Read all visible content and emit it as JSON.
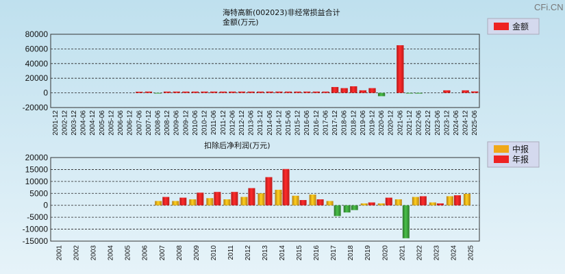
{
  "watermark": "CFi.CN",
  "colors": {
    "red": "#ee2222",
    "orange": "#f0a818",
    "green": "#3a9a3a"
  },
  "chart_data": [
    {
      "type": "bar",
      "title": "海特高新(002023)非经常损益合计",
      "subtitle": "金额(万元)",
      "legend": [
        {
          "name": "金额",
          "color": "#ee2222"
        }
      ],
      "legend_position": "right",
      "ylim": [
        -20000,
        80000
      ],
      "yticks": [
        80000,
        60000,
        40000,
        20000,
        0,
        -20000
      ],
      "grid": true,
      "categories": [
        "2001-12",
        "2002-12",
        "2003-12",
        "2004-06",
        "2004-12",
        "2005-06",
        "2005-12",
        "2006-06",
        "2006-12",
        "2007-06",
        "2007-12",
        "2008-06",
        "2008-12",
        "2009-06",
        "2009-12",
        "2010-06",
        "2010-12",
        "2011-06",
        "2011-12",
        "2012-06",
        "2012-12",
        "2013-06",
        "2013-12",
        "2014-06",
        "2014-12",
        "2015-06",
        "2015-12",
        "2016-06",
        "2016-12",
        "2017-06",
        "2017-12",
        "2018-06",
        "2018-12",
        "2019-06",
        "2019-12",
        "2020-06",
        "2020-12",
        "2021-06",
        "2021-12",
        "2022-06",
        "2022-12",
        "2023-06",
        "2023-12",
        "2024-06",
        "2024-12",
        "2025-06"
      ],
      "values": [
        0,
        0,
        0,
        0,
        0,
        0,
        0,
        0,
        0,
        1600,
        1800,
        -500,
        1800,
        1800,
        1800,
        1800,
        1800,
        1800,
        1800,
        1800,
        1800,
        1800,
        1800,
        1800,
        1800,
        1800,
        1800,
        1800,
        1800,
        1800,
        8000,
        6500,
        9000,
        3500,
        6500,
        -4500,
        0,
        65000,
        -500,
        -1000,
        0,
        0,
        3500,
        0,
        3500,
        2000
      ]
    },
    {
      "type": "bar",
      "title": "扣除后净利润(万元)",
      "legend": [
        {
          "name": "中报",
          "color": "#f0a818"
        },
        {
          "name": "年报",
          "color": "#ee2222"
        }
      ],
      "legend_position": "right",
      "ylim": [
        -15000,
        20000
      ],
      "yticks": [
        20000,
        15000,
        10000,
        5000,
        0,
        -5000,
        -10000,
        -15000
      ],
      "grid": true,
      "categories": [
        "2001",
        "2002",
        "2003",
        "2004",
        "2005",
        "2006",
        "2007",
        "2008",
        "2009",
        "2010",
        "2011",
        "2012",
        "2013",
        "2014",
        "2015",
        "2016",
        "2017",
        "2018",
        "2019",
        "2020",
        "2021",
        "2022",
        "2023",
        "2024",
        "2025"
      ],
      "series": [
        {
          "name": "中报",
          "values": [
            0,
            0,
            0,
            0,
            0,
            0,
            1800,
            1800,
            2500,
            3000,
            2500,
            3500,
            5000,
            6500,
            4000,
            4500,
            1800,
            -3000,
            800,
            800,
            2500,
            3500,
            1200,
            3800,
            4800
          ]
        },
        {
          "name": "年报",
          "values": [
            0,
            0,
            0,
            0,
            0,
            0,
            3500,
            3200,
            5300,
            5600,
            5600,
            7200,
            11800,
            15200,
            2200,
            2500,
            -4500,
            -2000,
            1200,
            3200,
            -13800,
            3800,
            800,
            4200,
            null
          ]
        }
      ]
    }
  ]
}
